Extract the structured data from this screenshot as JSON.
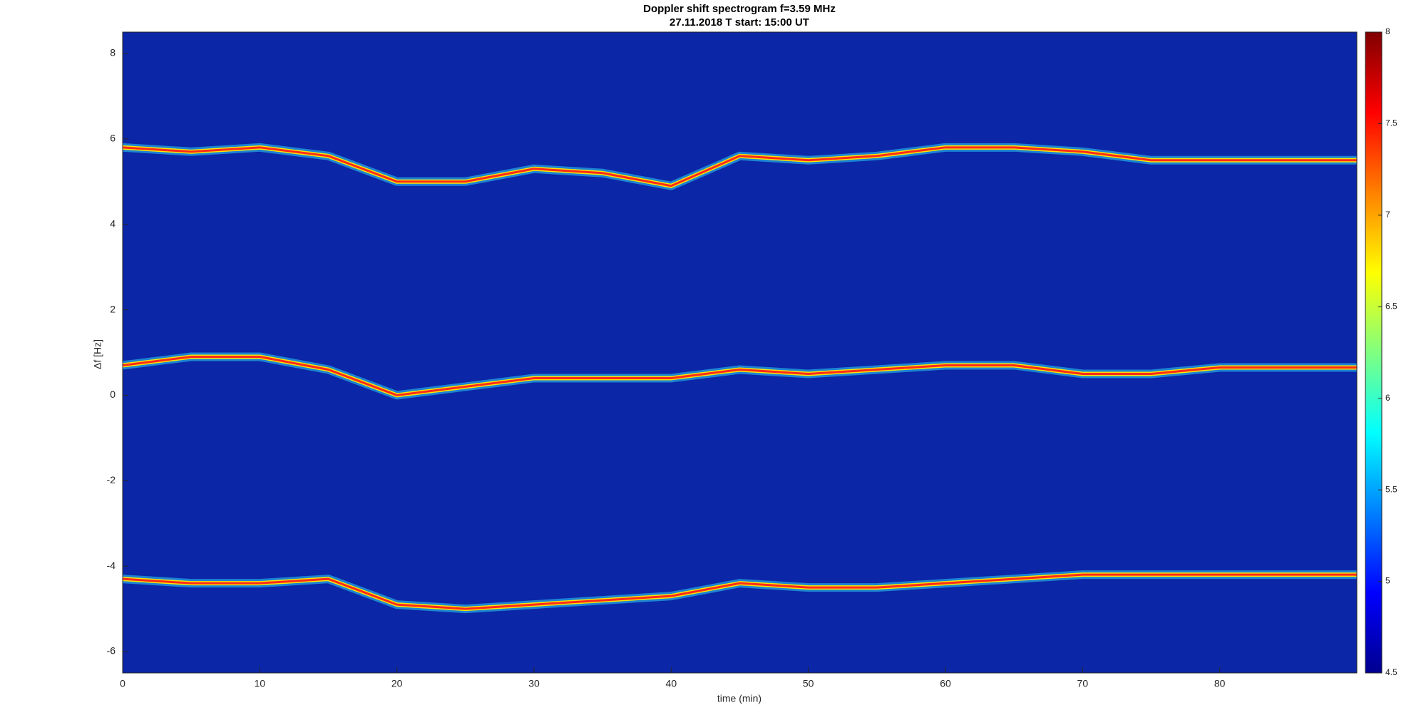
{
  "chart_data": {
    "type": "spectrogram",
    "title": "Doppler shift spectrogram f=3.59 MHz",
    "subtitle": "27.11.2018   T start: 15:00 UT",
    "x_label": "time (min)",
    "y_label": "Δf [Hz]",
    "xlim": [
      0,
      90
    ],
    "ylim": [
      -6.5,
      8.5
    ],
    "xticks": [
      0,
      10,
      20,
      30,
      40,
      50,
      60,
      70,
      80
    ],
    "yticks": [
      -6,
      -4,
      -2,
      0,
      2,
      4,
      6,
      8
    ],
    "background": "#0b26a6",
    "x": [
      0,
      5,
      10,
      15,
      20,
      25,
      30,
      35,
      40,
      45,
      50,
      55,
      60,
      65,
      70,
      75,
      80,
      85,
      90
    ],
    "series": [
      {
        "color": "#ff2a1a",
        "values": [
          5.8,
          5.7,
          5.8,
          5.6,
          5.0,
          5.0,
          5.3,
          5.2,
          4.9,
          5.6,
          5.5,
          5.6,
          5.8,
          5.8,
          5.7,
          5.5,
          5.5,
          5.5,
          5.5
        ]
      },
      {
        "color": "#ff2a1a",
        "values": [
          0.7,
          0.9,
          0.9,
          0.6,
          0.0,
          0.2,
          0.4,
          0.4,
          0.4,
          0.6,
          0.5,
          0.6,
          0.7,
          0.7,
          0.5,
          0.5,
          0.65,
          0.65,
          0.65
        ]
      },
      {
        "color": "#ff2a1a",
        "values": [
          -4.3,
          -4.4,
          -4.4,
          -4.3,
          -4.9,
          -5.0,
          -4.9,
          -4.8,
          -4.7,
          -4.4,
          -4.5,
          -4.5,
          -4.4,
          -4.3,
          -4.2,
          -4.2,
          -4.2,
          -4.2,
          -4.2
        ]
      }
    ],
    "colorbar": {
      "lim": [
        4.5,
        8
      ],
      "ticks": [
        4.5,
        5,
        5.5,
        6,
        6.5,
        7,
        7.5,
        8
      ],
      "colors": [
        "#00008f",
        "#0000ff",
        "#0080ff",
        "#00ffff",
        "#80ff80",
        "#ffff00",
        "#ff8000",
        "#ff0000",
        "#800000"
      ]
    }
  }
}
